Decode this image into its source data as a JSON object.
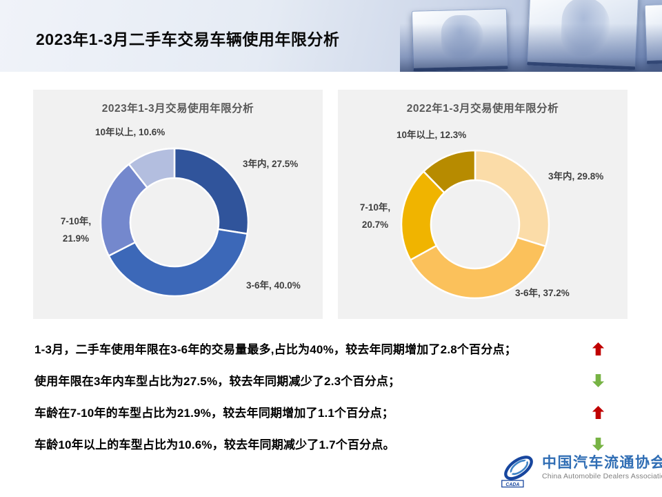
{
  "header": {
    "title": "2023年1-3月二手车交易车辆使用年限分析"
  },
  "chart_data": [
    {
      "type": "pie",
      "subtype": "donut",
      "title": "2023年1-3月交易使用年限分析",
      "categories": [
        "3年内",
        "3-6年",
        "7-10年",
        "10年以上"
      ],
      "values": [
        27.5,
        40.0,
        21.9,
        10.6
      ],
      "unit": "%",
      "colors": [
        "#30549B",
        "#3C68B8",
        "#7488CD",
        "#B3BEDF"
      ],
      "start_angle": "top",
      "direction": "clockwise",
      "hole_ratio": 0.6,
      "labels": {
        "top_left": "10年以上, 10.6%",
        "right": "3年内, 27.5%",
        "bottom_right": "3-6年, 40.0%",
        "left_line1": "7-10年,",
        "left_line2": "21.9%"
      }
    },
    {
      "type": "pie",
      "subtype": "donut",
      "title": "2022年1-3月交易使用年限分析",
      "categories": [
        "3年内",
        "3-6年",
        "7-10年",
        "10年以上"
      ],
      "values": [
        29.8,
        37.2,
        20.7,
        12.3
      ],
      "unit": "%",
      "colors": [
        "#FBDCA8",
        "#FBC15B",
        "#F0B400",
        "#B78B00"
      ],
      "start_angle": "top",
      "direction": "clockwise",
      "hole_ratio": 0.6,
      "labels": {
        "top_left": "10年以上, 12.3%",
        "right": "3年内, 29.8%",
        "bottom_right": "3-6年, 37.2%",
        "left_line1": "7-10年,",
        "left_line2": "20.7%"
      }
    }
  ],
  "analysis": {
    "up_color": "#C00000",
    "down_color": "#77B344",
    "lines": [
      {
        "text": "1-3月，二手车使用年限在3-6年的交易量最多,占比为40%，较去年同期增加了2.8个百分点；",
        "trend": "up"
      },
      {
        "text": "使用年限在3年内车型占比为27.5%，较去年同期减少了2.3个百分点；",
        "trend": "down"
      },
      {
        "text": "车龄在7-10年的车型占比为21.9%，较去年同期增加了1.1个百分点；",
        "trend": "up"
      },
      {
        "text": "车龄10年以上的车型占比为10.6%，较去年同期减少了1.7个百分点。",
        "trend": "down"
      }
    ]
  },
  "logo": {
    "abbr": "CADA",
    "name_cn": "中国汽车流通协会",
    "name_en": "China Automobile Dealers Association",
    "primary_color": "#2F6DB4"
  }
}
